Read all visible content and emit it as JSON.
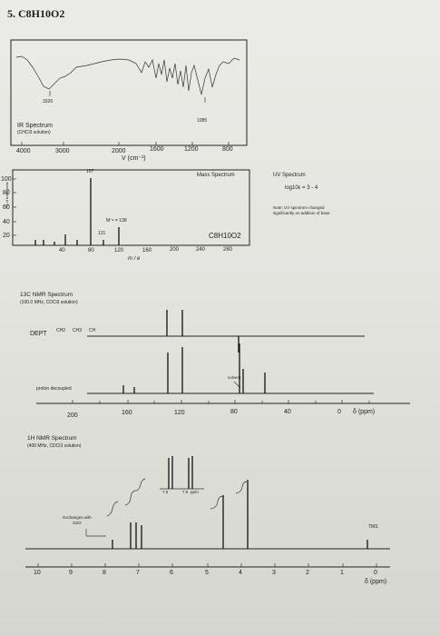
{
  "problem": {
    "title": "5. C8H10O2"
  },
  "ir": {
    "title": "IR Spectrum",
    "subtitle": "(CHCl3 solution)",
    "peak_labels": [
      "3326",
      "1085"
    ],
    "axis_ticks": [
      "4000",
      "3000",
      "2000",
      "1600",
      "1200",
      "800"
    ],
    "axis_label": "V (cm⁻¹)"
  },
  "mass": {
    "title": "Mass Spectrum",
    "ylabel": "% of base peak",
    "yticks": [
      "100",
      "80",
      "60",
      "40",
      "20"
    ],
    "xticks": [
      "40",
      "80",
      "120",
      "160",
      "200",
      "240",
      "280"
    ],
    "xlabel": "m / e",
    "peak_labels": [
      "107",
      "121"
    ],
    "molecular_ion": "M⁺• = 138",
    "formula": "C8H10O2"
  },
  "uv": {
    "title": "UV Spectrum",
    "log_eps": "log10ε = 3 - 4",
    "note": "Note: UV spectrum changed significantly on addition of base"
  },
  "c13": {
    "title": "13C NMR Spectrum",
    "subtitle": "(100.0 MHz, CDCl3 solution)",
    "dept_label": "DEPT",
    "dept_types": [
      "CH2",
      "CH3",
      "CH"
    ],
    "proton_decoupled": "proton decoupled",
    "solvent": "solvent",
    "axis_ticks": [
      "200",
      "160",
      "120",
      "80",
      "40",
      "0"
    ],
    "axis_unit": "δ (ppm)"
  },
  "h1": {
    "title": "1H NMR Spectrum",
    "subtitle": "(400 MHz, CDCl3 solution)",
    "exchanges": "Exchanges with D2O",
    "expansion_labels": [
      "7.5",
      "7.0",
      "ppm"
    ],
    "tms": "TMS",
    "axis_ticks": [
      "10",
      "9",
      "8",
      "7",
      "6",
      "5",
      "4",
      "3",
      "2",
      "1",
      "0"
    ],
    "axis_unit": "δ (ppm)"
  }
}
